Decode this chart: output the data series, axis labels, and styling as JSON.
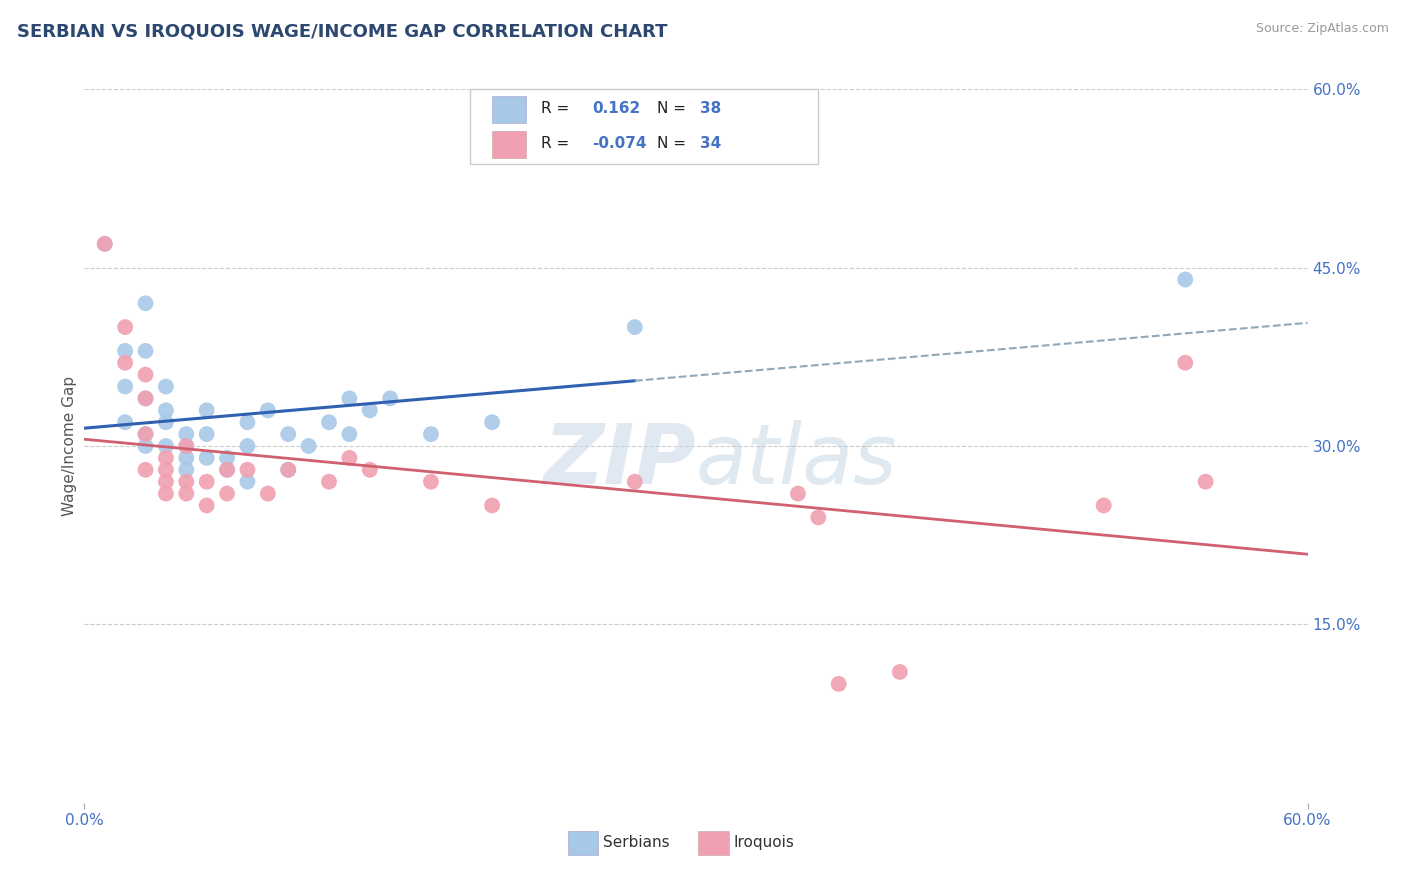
{
  "title": "SERBIAN VS IROQUOIS WAGE/INCOME GAP CORRELATION CHART",
  "source_text": "Source: ZipAtlas.com",
  "ylabel": "Wage/Income Gap",
  "watermark": "ZIPatlas",
  "xlim": [
    0.0,
    0.6
  ],
  "ylim": [
    0.0,
    0.6
  ],
  "title_color": "#2c4770",
  "title_fontsize": 13,
  "serbian_color": "#a8c8e8",
  "iroquois_color": "#f0a0b0",
  "serbian_line_color": "#3060b0",
  "iroquois_line_color": "#d06070",
  "dash_color": "#90a8b8",
  "right_label_color": "#4472c4",
  "right_yticks": [
    0.15,
    0.3,
    0.45,
    0.6
  ],
  "right_yticklabels": [
    "15.0%",
    "30.0%",
    "45.0%",
    "60.0%"
  ],
  "xtick_labels": [
    "0.0%",
    "60.0%"
  ],
  "xtick_vals": [
    0.0,
    0.6
  ],
  "legend_r1": "R =  0.162",
  "legend_n1": "N = 38",
  "legend_r2": "R = -0.074",
  "legend_n2": "N = 34",
  "bottom_label1": "Serbians",
  "bottom_label2": "Iroquois",
  "serbian_scatter": [
    [
      0.01,
      0.47
    ],
    [
      0.02,
      0.38
    ],
    [
      0.03,
      0.42
    ],
    [
      0.03,
      0.38
    ],
    [
      0.02,
      0.35
    ],
    [
      0.02,
      0.32
    ],
    [
      0.03,
      0.31
    ],
    [
      0.03,
      0.34
    ],
    [
      0.03,
      0.3
    ],
    [
      0.04,
      0.33
    ],
    [
      0.04,
      0.3
    ],
    [
      0.04,
      0.35
    ],
    [
      0.04,
      0.32
    ],
    [
      0.05,
      0.31
    ],
    [
      0.05,
      0.3
    ],
    [
      0.05,
      0.28
    ],
    [
      0.05,
      0.29
    ],
    [
      0.06,
      0.33
    ],
    [
      0.06,
      0.31
    ],
    [
      0.06,
      0.29
    ],
    [
      0.07,
      0.29
    ],
    [
      0.07,
      0.28
    ],
    [
      0.08,
      0.32
    ],
    [
      0.08,
      0.3
    ],
    [
      0.08,
      0.27
    ],
    [
      0.09,
      0.33
    ],
    [
      0.1,
      0.31
    ],
    [
      0.1,
      0.28
    ],
    [
      0.11,
      0.3
    ],
    [
      0.12,
      0.32
    ],
    [
      0.13,
      0.31
    ],
    [
      0.13,
      0.34
    ],
    [
      0.14,
      0.33
    ],
    [
      0.15,
      0.34
    ],
    [
      0.17,
      0.31
    ],
    [
      0.2,
      0.32
    ],
    [
      0.27,
      0.4
    ],
    [
      0.54,
      0.44
    ]
  ],
  "iroquois_scatter": [
    [
      0.01,
      0.47
    ],
    [
      0.02,
      0.4
    ],
    [
      0.02,
      0.37
    ],
    [
      0.03,
      0.36
    ],
    [
      0.03,
      0.34
    ],
    [
      0.03,
      0.31
    ],
    [
      0.03,
      0.28
    ],
    [
      0.04,
      0.29
    ],
    [
      0.04,
      0.27
    ],
    [
      0.04,
      0.26
    ],
    [
      0.04,
      0.28
    ],
    [
      0.05,
      0.3
    ],
    [
      0.05,
      0.27
    ],
    [
      0.05,
      0.26
    ],
    [
      0.06,
      0.27
    ],
    [
      0.06,
      0.25
    ],
    [
      0.07,
      0.28
    ],
    [
      0.07,
      0.26
    ],
    [
      0.08,
      0.28
    ],
    [
      0.09,
      0.26
    ],
    [
      0.1,
      0.28
    ],
    [
      0.12,
      0.27
    ],
    [
      0.13,
      0.29
    ],
    [
      0.14,
      0.28
    ],
    [
      0.17,
      0.27
    ],
    [
      0.2,
      0.25
    ],
    [
      0.27,
      0.27
    ],
    [
      0.35,
      0.26
    ],
    [
      0.36,
      0.24
    ],
    [
      0.37,
      0.1
    ],
    [
      0.4,
      0.11
    ],
    [
      0.5,
      0.25
    ],
    [
      0.54,
      0.37
    ],
    [
      0.55,
      0.27
    ]
  ],
  "serb_line_solid_end": 0.27,
  "scatter_size": 130
}
